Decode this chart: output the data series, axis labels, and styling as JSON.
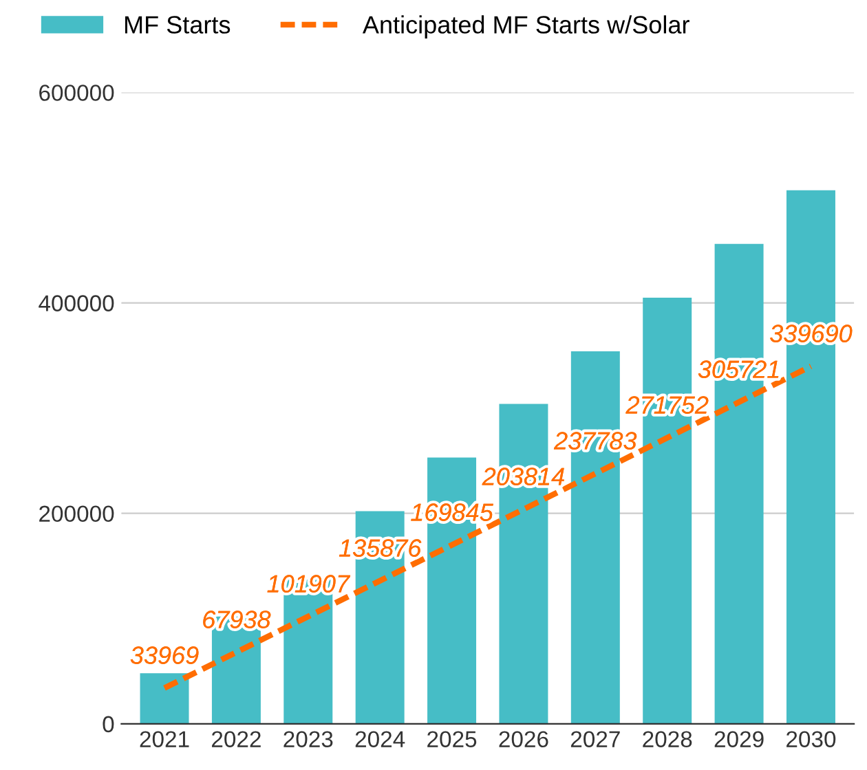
{
  "chart_data": {
    "type": "bar",
    "categories": [
      "2021",
      "2022",
      "2023",
      "2024",
      "2025",
      "2026",
      "2027",
      "2028",
      "2029",
      "2030"
    ],
    "series": [
      {
        "name": "MF Starts",
        "color": "#46bdc6",
        "values": [
          48000,
          102000,
          137000,
          202000,
          253000,
          304000,
          354000,
          405000,
          456000,
          507000
        ]
      },
      {
        "name": "Anticipated MF Starts w/Solar",
        "type": "line",
        "color": "#ff6d01",
        "line_style": "dashed",
        "values": [
          33969,
          67938,
          101907,
          135876,
          169845,
          203814,
          237783,
          271752,
          305721,
          339690
        ],
        "value_labels": [
          "33969",
          "67938",
          "101907",
          "135876",
          "169845",
          "203814",
          "237783",
          "271752",
          "305721",
          "339690"
        ]
      }
    ],
    "ylim": [
      0,
      600000
    ],
    "yticks": [
      0,
      200000,
      400000,
      600000
    ],
    "grid": "y",
    "legend": "top left",
    "marker": "none"
  }
}
